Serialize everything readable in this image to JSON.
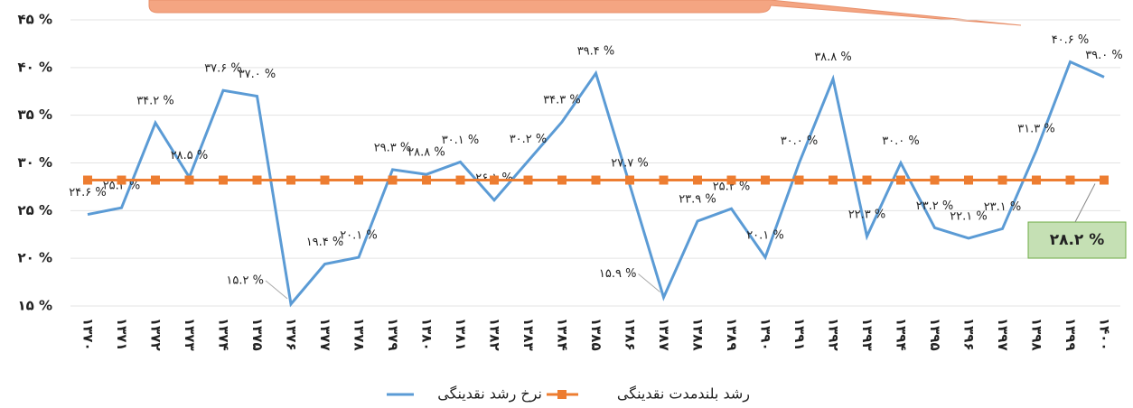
{
  "chart_data": {
    "type": "line",
    "categories": [
      "۱۳۷۰",
      "۱۳۷۱",
      "۱۳۷۲",
      "۱۳۷۳",
      "۱۳۷۴",
      "۱۳۷۵",
      "۱۳۷۶",
      "۱۳۷۷",
      "۱۳۷۸",
      "۱۳۷۹",
      "۱۳۸۰",
      "۱۳۸۱",
      "۱۳۸۲",
      "۱۳۸۳",
      "۱۳۸۴",
      "۱۳۸۵",
      "۱۳۸۶",
      "۱۳۸۷",
      "۱۳۸۸",
      "۱۳۸۹",
      "۱۳۹۰",
      "۱۳۹۱",
      "۱۳۹۲",
      "۱۳۹۳",
      "۱۳۹۴",
      "۱۳۹۵",
      "۱۳۹۶",
      "۱۳۹۷",
      "۱۳۹۸",
      "۱۳۹۹",
      "۱۴۰۰"
    ],
    "series": [
      {
        "name": "نرخ رشد نقدینگی",
        "color": "#5b9bd5",
        "values": [
          24.6,
          25.3,
          34.2,
          28.5,
          37.6,
          37.0,
          15.2,
          19.4,
          20.1,
          29.3,
          28.8,
          30.1,
          26.1,
          30.2,
          34.3,
          39.4,
          27.7,
          15.9,
          23.9,
          25.2,
          20.1,
          30.0,
          38.8,
          22.3,
          30.0,
          23.2,
          22.1,
          23.1,
          31.3,
          40.6,
          39.0
        ],
        "value_labels": [
          "۲۴.۶ %",
          "۲۵.۳ %",
          "۳۴.۲ %",
          "۲۸.۵ %",
          "۳۷.۶ %",
          "۳۷.۰ %",
          "۱۵.۲ %",
          "۱۹.۴ %",
          "۲۰.۱ %",
          "۲۹.۳ %",
          "۲۸.۸ %",
          "۳۰.۱ %",
          "۲۶.۱ %",
          "۳۰.۲ %",
          "۳۴.۳ %",
          "۳۹.۴ %",
          "۲۷.۷ %",
          "۱۵.۹ %",
          "۲۳.۹ %",
          "۲۵.۲ %",
          "۲۰.۱ %",
          "۳۰.۰ %",
          "۳۸.۸ %",
          "۲۲.۳ %",
          "۳۰.۰ %",
          "۲۳.۲ %",
          "۲۲.۱ %",
          "۲۳.۱ %",
          "۳۱.۳ %",
          "۴۰.۶ %",
          "۳۹.۰ %"
        ]
      },
      {
        "name": "رشد بلندمدت نقدینگی",
        "color": "#ed7d31",
        "values": [
          28.2,
          28.2,
          28.2,
          28.2,
          28.2,
          28.2,
          28.2,
          28.2,
          28.2,
          28.2,
          28.2,
          28.2,
          28.2,
          28.2,
          28.2,
          28.2,
          28.2,
          28.2,
          28.2,
          28.2,
          28.2,
          28.2,
          28.2,
          28.2,
          28.2,
          28.2,
          28.2,
          28.2,
          28.2,
          28.2,
          28.2
        ],
        "value_labels": [
          null,
          null,
          null,
          null,
          null,
          null,
          null,
          null,
          null,
          null,
          null,
          null,
          null,
          null,
          null,
          null,
          null,
          null,
          null,
          null,
          null,
          null,
          null,
          null,
          null,
          null,
          null,
          null,
          null,
          null,
          "۲۸.۲ %"
        ]
      }
    ],
    "ylim": [
      15,
      45
    ],
    "yticks": [
      {
        "value": 15,
        "label": "۱۵ %"
      },
      {
        "value": 20,
        "label": "۲۰ %"
      },
      {
        "value": 25,
        "label": "۲۵ %"
      },
      {
        "value": 30,
        "label": "۳۰ %"
      },
      {
        "value": 35,
        "label": "۳۵ %"
      },
      {
        "value": 40,
        "label": "۴۰ %"
      },
      {
        "value": 45,
        "label": "۴۵ %"
      }
    ],
    "grid": true,
    "legend": "bottom"
  }
}
